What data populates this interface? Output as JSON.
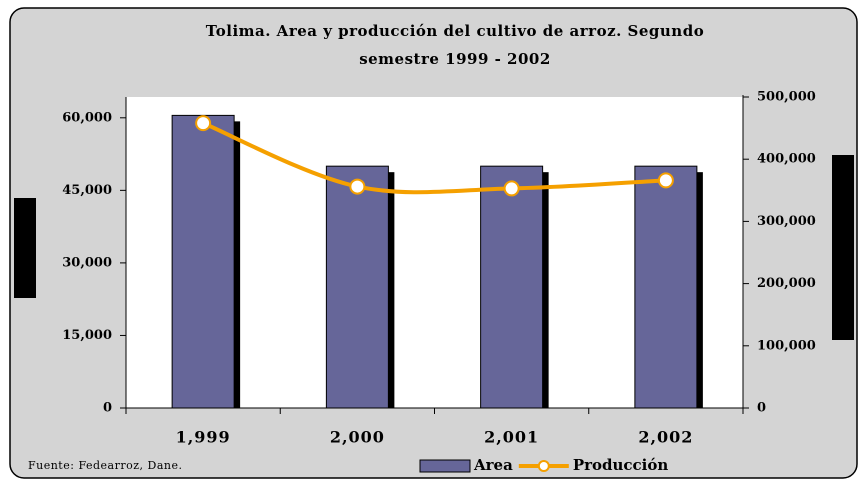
{
  "chart_data": {
    "type": "bar_line",
    "title": "Tolima. Area y producción del cultivo de arroz. Segundo",
    "subtitle": "semestre 1999 - 2002",
    "categories": [
      "1,999",
      "2,000",
      "2,001",
      "2,002"
    ],
    "series": [
      {
        "name": "Area",
        "type": "bar",
        "color": "#666699",
        "values": [
          60500,
          50000,
          50000,
          50000
        ]
      },
      {
        "name": "Producción",
        "type": "line",
        "axis": "y2",
        "color": "#f5a000",
        "values": [
          458000,
          356000,
          353000,
          366000
        ]
      }
    ],
    "ylim": [
      0,
      64300
    ],
    "yticks": [
      0,
      {
        "value": 15000,
        "label": "15,000"
      },
      {
        "value": 30000,
        "label": "30,000"
      },
      {
        "value": 45000,
        "label": "45,000"
      },
      {
        "value": 60000,
        "label": "60,000"
      }
    ],
    "y2lim": [
      0,
      500000
    ],
    "y2ticks": [
      0,
      {
        "value": 100000,
        "label": "100,000"
      },
      {
        "value": 200000,
        "label": "200,000"
      },
      {
        "value": 300000,
        "label": "300,000"
      },
      {
        "value": 400000,
        "label": "400,000"
      },
      {
        "value": 500000,
        "label": "500,000"
      }
    ],
    "source": "Fuente: Fedearroz, Dane."
  }
}
